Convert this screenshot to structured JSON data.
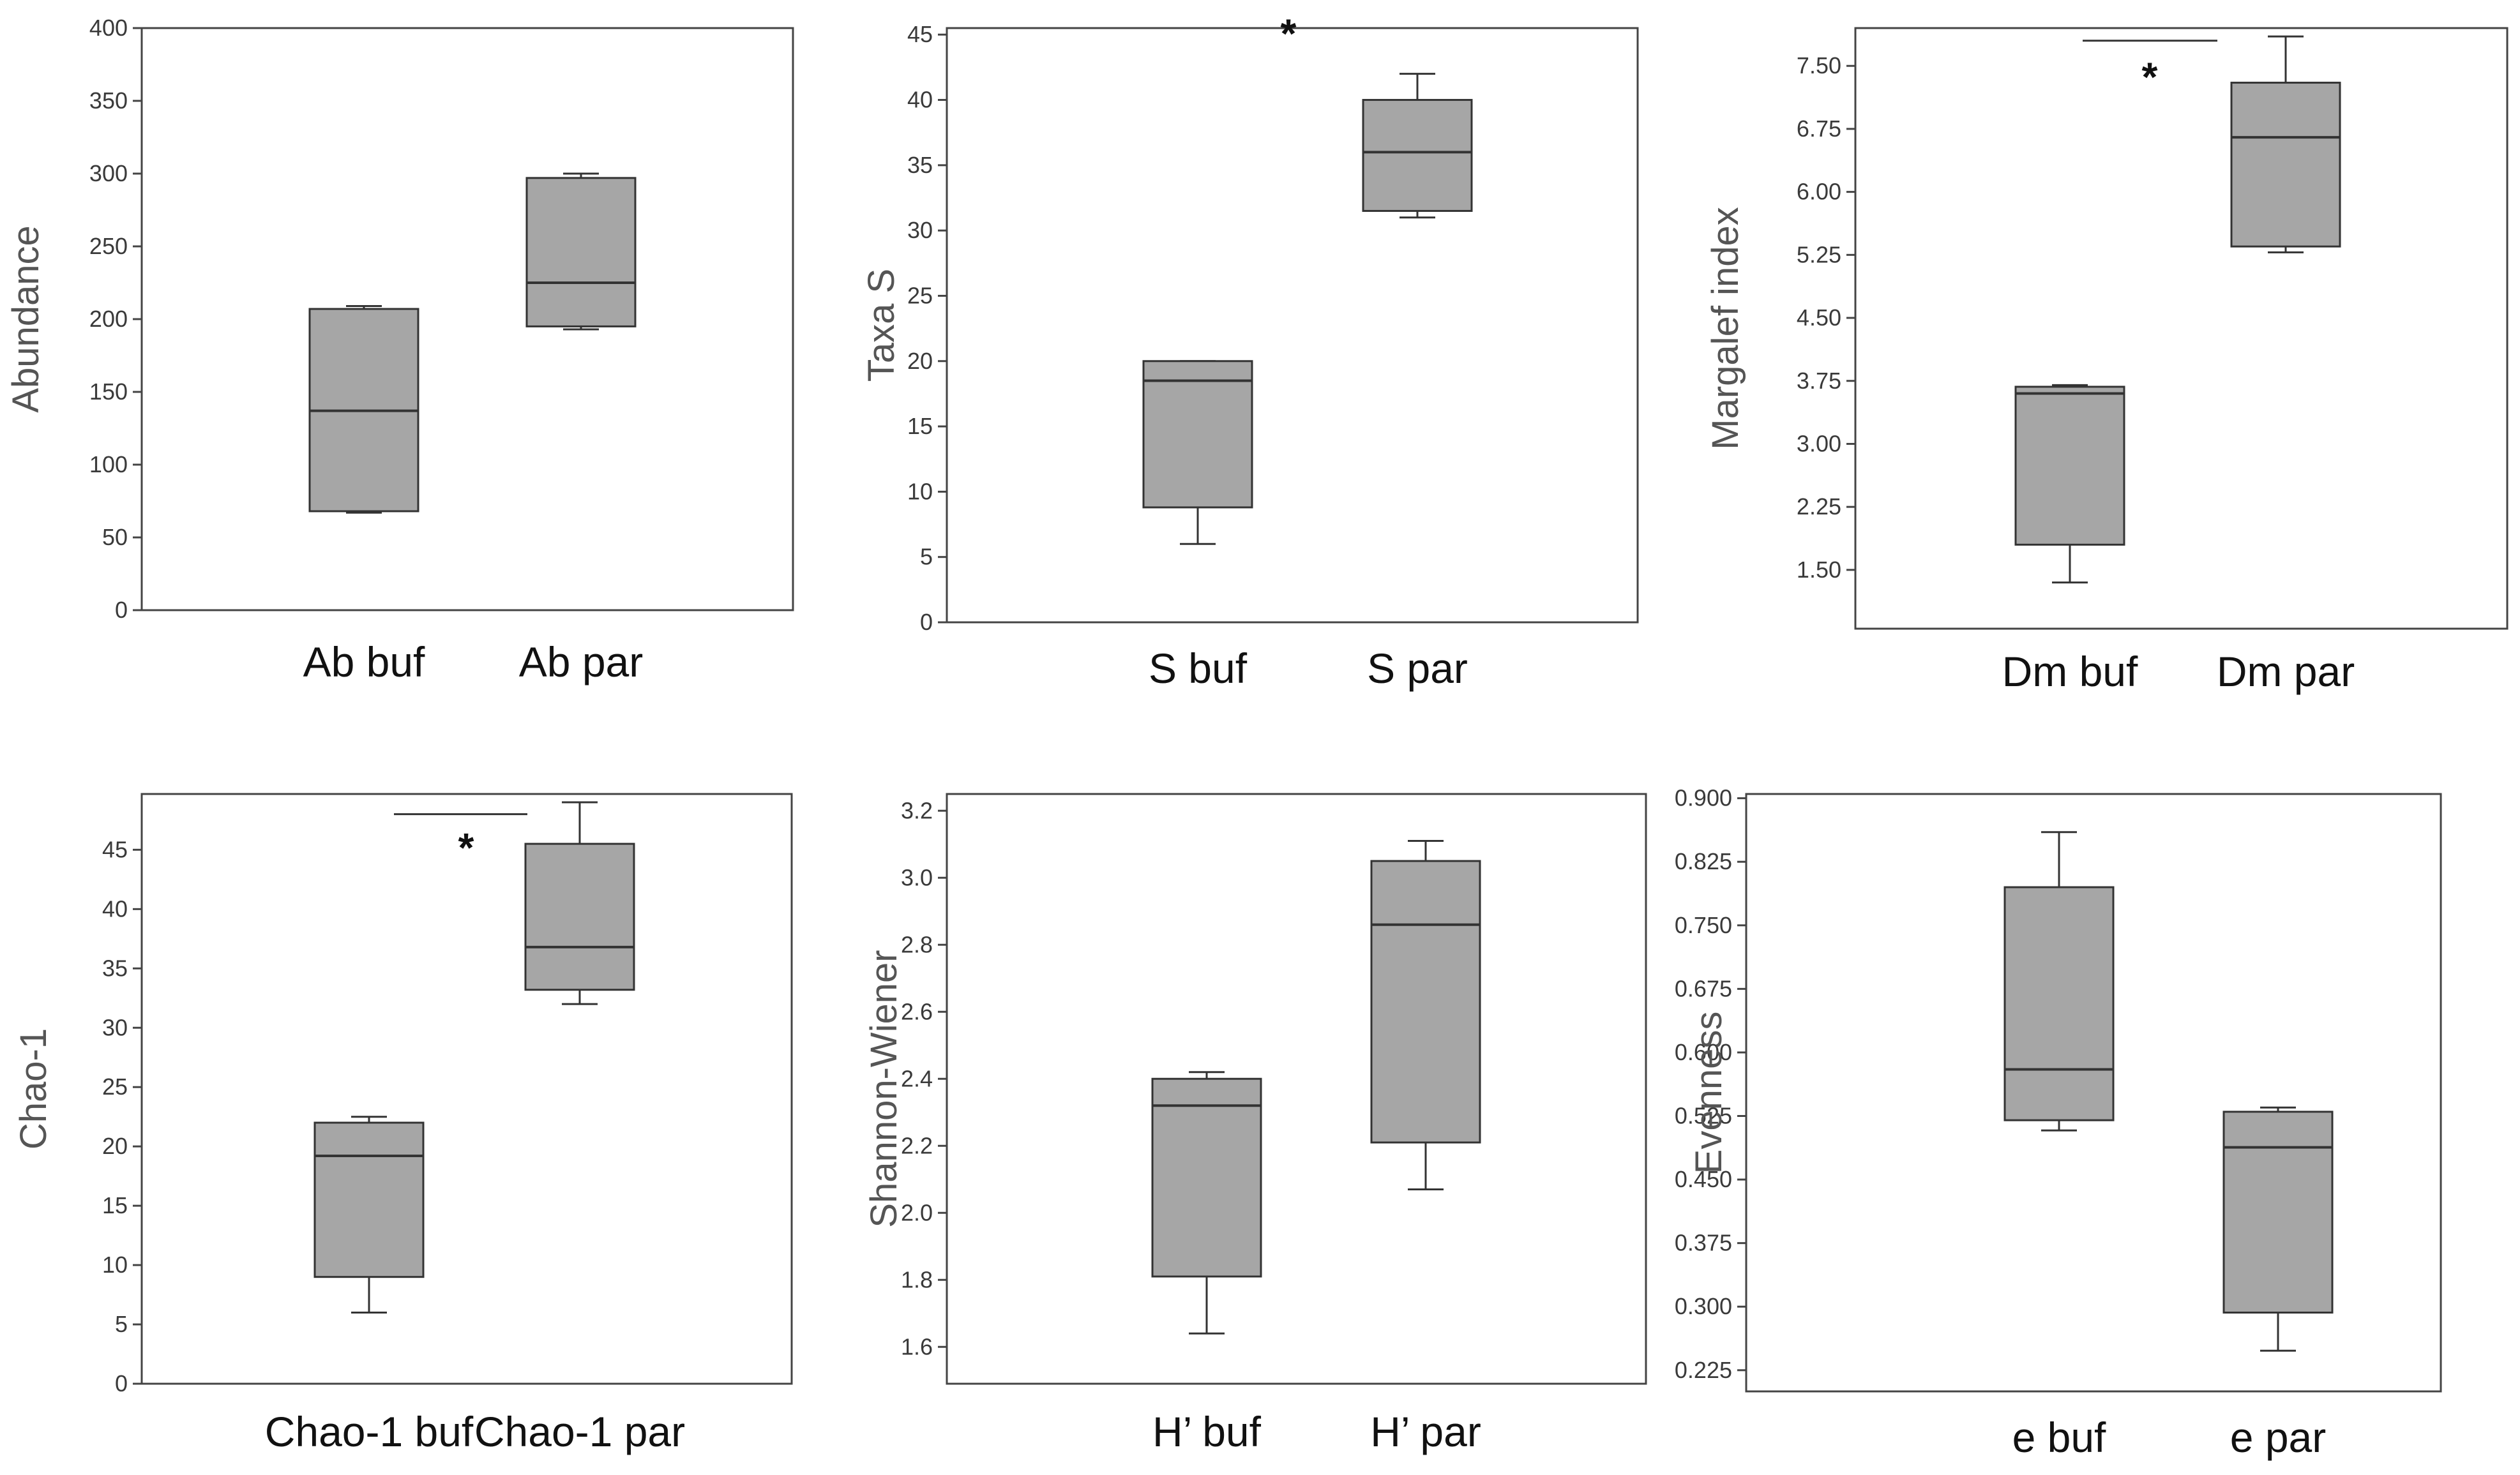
{
  "colors": {
    "box_fill": "#a6a6a6",
    "line": "#333333",
    "frame": "#444444"
  },
  "chart_data": [
    {
      "type": "box",
      "ylabel": "Abundance",
      "yticks": [
        0,
        50,
        100,
        150,
        200,
        250,
        300,
        350,
        400
      ],
      "ytick_labels": [
        "0",
        "50",
        "100",
        "150",
        "200",
        "250",
        "300",
        "350",
        "400"
      ],
      "ylim": [
        0,
        400
      ],
      "categories": [
        "Ab buf",
        "Ab par"
      ],
      "boxes": [
        {
          "min": 67,
          "q1": 68,
          "median": 137,
          "q3": 207,
          "max": 209
        },
        {
          "min": 193,
          "q1": 195,
          "median": 225,
          "q3": 297,
          "max": 300
        }
      ],
      "significance": null
    },
    {
      "type": "box",
      "ylabel": "Taxa S",
      "yticks": [
        0,
        5,
        10,
        15,
        20,
        25,
        30,
        35,
        40,
        45
      ],
      "ytick_labels": [
        "0",
        "5",
        "10",
        "15",
        "20",
        "25",
        "30",
        "35",
        "40",
        "45"
      ],
      "ylim": [
        0,
        45.5
      ],
      "categories": [
        "S buf",
        "S par"
      ],
      "boxes": [
        {
          "min": 6,
          "q1": 8.8,
          "median": 18.5,
          "q3": 20,
          "max": 20
        },
        {
          "min": 31,
          "q1": 31.5,
          "median": 36,
          "q3": 40,
          "max": 42
        }
      ],
      "significance": {
        "label": "*",
        "line_y": 48.5,
        "star_y": 44
      }
    },
    {
      "type": "box",
      "ylabel": "Margalef index",
      "yticks": [
        1.5,
        2.25,
        3.0,
        3.75,
        4.5,
        5.25,
        6.0,
        6.75,
        7.5
      ],
      "ytick_labels": [
        "1.50",
        "2.25",
        "3.00",
        "3.75",
        "4.50",
        "5.25",
        "6.00",
        "6.75",
        "7.50"
      ],
      "ylim": [
        0.8,
        7.95
      ],
      "categories": [
        "Dm buf",
        "Dm par"
      ],
      "boxes": [
        {
          "min": 1.35,
          "q1": 1.8,
          "median": 3.6,
          "q3": 3.68,
          "max": 3.7
        },
        {
          "min": 5.28,
          "q1": 5.35,
          "median": 6.65,
          "q3": 7.3,
          "max": 7.85
        }
      ],
      "significance": {
        "label": "*",
        "line_y": 7.8,
        "star_y": 7.2
      }
    },
    {
      "type": "box",
      "ylabel": "Chao-1",
      "yticks": [
        0,
        5,
        10,
        15,
        20,
        25,
        30,
        35,
        40,
        45
      ],
      "ytick_labels": [
        "0",
        "5",
        "10",
        "15",
        "20",
        "25",
        "30",
        "35",
        "40",
        "45"
      ],
      "ylim": [
        0,
        49.7
      ],
      "categories": [
        "Chao-1 buf",
        "Chao-1 par"
      ],
      "boxes": [
        {
          "min": 6,
          "q1": 9,
          "median": 19.2,
          "q3": 22,
          "max": 22.5
        },
        {
          "min": 32,
          "q1": 33.2,
          "median": 36.8,
          "q3": 45.5,
          "max": 49
        }
      ],
      "significance": {
        "label": "*",
        "line_y": 48,
        "star_y": 44
      }
    },
    {
      "type": "box",
      "ylabel": "Shannon-Wiener",
      "yticks": [
        1.6,
        1.8,
        2.0,
        2.2,
        2.4,
        2.6,
        2.8,
        3.0,
        3.2
      ],
      "ytick_labels": [
        "1.6",
        "1.8",
        "2.0",
        "2.2",
        "2.4",
        "2.6",
        "2.8",
        "3.0",
        "3.2"
      ],
      "ylim": [
        1.49,
        3.25
      ],
      "categories": [
        "H’ buf",
        "H’ par"
      ],
      "boxes": [
        {
          "min": 1.64,
          "q1": 1.81,
          "median": 2.32,
          "q3": 2.4,
          "max": 2.42
        },
        {
          "min": 2.07,
          "q1": 2.21,
          "median": 2.86,
          "q3": 3.05,
          "max": 3.11
        }
      ],
      "significance": null
    },
    {
      "type": "box",
      "ylabel": "Evenness",
      "yticks": [
        0.225,
        0.3,
        0.375,
        0.45,
        0.525,
        0.6,
        0.675,
        0.75,
        0.825,
        0.9
      ],
      "ytick_labels": [
        "0.225",
        "0.300",
        "0.375",
        "0.450",
        "0.525",
        "0.600",
        "0.675",
        "0.750",
        "0.825",
        "0.900"
      ],
      "ylim": [
        0.2,
        0.905
      ],
      "categories": [
        "e buf",
        "e par"
      ],
      "boxes": [
        {
          "min": 0.508,
          "q1": 0.52,
          "median": 0.58,
          "q3": 0.795,
          "max": 0.86
        },
        {
          "min": 0.248,
          "q1": 0.293,
          "median": 0.488,
          "q3": 0.53,
          "max": 0.535
        }
      ],
      "significance": null
    }
  ]
}
